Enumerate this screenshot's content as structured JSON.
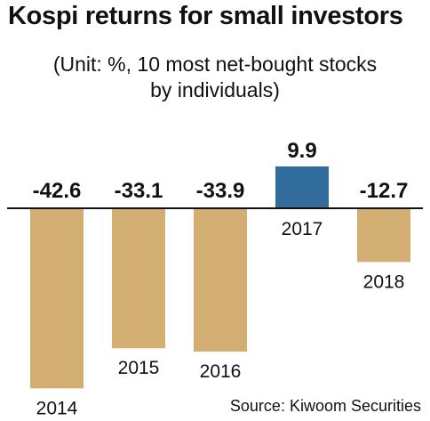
{
  "title": "Kospi returns for small investors",
  "subtitle_lines": [
    "(Unit: %, 10 most net-bought stocks",
    "by individuals)"
  ],
  "source": "Source: Kiwoom Securities",
  "colors": {
    "negative": "#d2ae72",
    "positive": "#326c9d",
    "axis": "#111111",
    "text": "#111111"
  },
  "chart_data": {
    "type": "bar",
    "title": "Kospi returns for small investors",
    "subtitle": "(Unit: %, 10 most net-bought stocks by individuals)",
    "categories": [
      "2014",
      "2015",
      "2016",
      "2017",
      "2018"
    ],
    "values": [
      -42.6,
      -33.1,
      -33.9,
      9.9,
      -12.7
    ],
    "value_labels": [
      "-42.6",
      "-33.1",
      "-33.9",
      "9.9",
      "-12.7"
    ],
    "xlabel": "",
    "ylabel": "",
    "grid": false,
    "legend": "none"
  }
}
